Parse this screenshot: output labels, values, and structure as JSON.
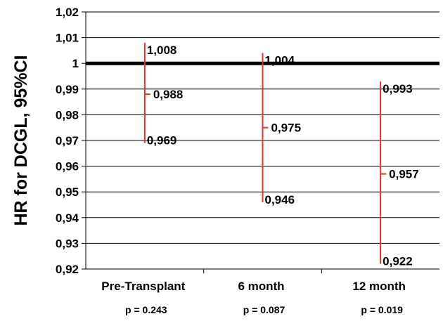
{
  "chart_data": {
    "type": "errorbar",
    "title": "",
    "xlabel": "",
    "ylabel": "HR for DCGL, 95%CI",
    "ylim": [
      0.92,
      1.02
    ],
    "yticks": [
      "0,92",
      "0,93",
      "0,94",
      "0,95",
      "0,96",
      "0,97",
      "0,98",
      "0,99",
      "1",
      "1,01",
      "1,02"
    ],
    "grid": true,
    "reference_line": 1,
    "series_color": "#e03030",
    "categories": [
      "Pre-Transplant",
      "6 month",
      "12 month"
    ],
    "p_values": [
      "p = 0.243",
      "p = 0.087",
      "p = 0.019"
    ],
    "upper": [
      1.008,
      1.004,
      0.993
    ],
    "estimate": [
      0.988,
      0.975,
      0.957
    ],
    "lower": [
      0.969,
      0.946,
      0.922
    ],
    "upper_labels": [
      "1,008",
      "1,004",
      "0,993"
    ],
    "estimate_labels": [
      "0,988",
      "0,975",
      "0,957"
    ],
    "lower_labels": [
      "0,969",
      "0,946",
      "0,922"
    ]
  }
}
